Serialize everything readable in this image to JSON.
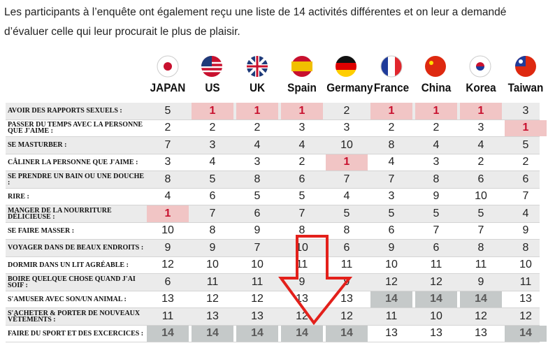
{
  "intro": "Les participants à l’enquête ont également reçu une liste de 14 activités différentes et on leur a demandé d’évaluer celle qui leur procurait le plus de plaisir.",
  "table": {
    "columns": [
      "JAPAN",
      "US",
      "UK",
      "Spain",
      "Germany",
      "France",
      "China",
      "Korea",
      "Taiwan"
    ],
    "rows": [
      {
        "label": "AVOIR DES RAPPORTS SEXUELS :",
        "values": [
          5,
          1,
          1,
          1,
          2,
          1,
          1,
          1,
          3
        ]
      },
      {
        "label": "PASSER DU TEMPS AVEC LA PERSONNE QUE J'AIME :",
        "values": [
          2,
          2,
          2,
          3,
          3,
          2,
          2,
          3,
          1
        ]
      },
      {
        "label": "SE MASTURBER :",
        "values": [
          7,
          3,
          4,
          4,
          10,
          8,
          4,
          4,
          5
        ]
      },
      {
        "label": "CÂLINER LA PERSONNE QUE J'AIME :",
        "values": [
          3,
          4,
          3,
          2,
          1,
          4,
          3,
          2,
          2
        ]
      },
      {
        "label": "SE PRENDRE UN BAIN OU UNE DOUCHE :",
        "values": [
          8,
          5,
          8,
          6,
          7,
          7,
          8,
          6,
          6
        ]
      },
      {
        "label": "RIRE :",
        "values": [
          4,
          6,
          5,
          5,
          4,
          3,
          9,
          10,
          7
        ]
      },
      {
        "label": "MANGER DE LA NOURRITURE DÉLICIEUSE :",
        "values": [
          1,
          7,
          6,
          7,
          5,
          5,
          5,
          5,
          4
        ]
      },
      {
        "label": "SE FAIRE MASSER :",
        "values": [
          10,
          8,
          9,
          8,
          8,
          6,
          7,
          7,
          9
        ]
      },
      {
        "label": "VOYAGER DANS DE BEAUX ENDROITS :",
        "values": [
          9,
          9,
          7,
          10,
          6,
          9,
          6,
          8,
          8
        ]
      },
      {
        "label": "DORMIR DANS UN LIT AGRÉABLE :",
        "values": [
          12,
          10,
          10,
          11,
          11,
          10,
          11,
          11,
          10
        ]
      },
      {
        "label": "BOIRE QUELQUE CHOSE QUAND J'AI SOIF :",
        "values": [
          6,
          11,
          11,
          9,
          9,
          12,
          12,
          9,
          11
        ]
      },
      {
        "label": "S'AMUSER AVEC SON/UN ANIMAL :",
        "values": [
          13,
          12,
          12,
          13,
          13,
          14,
          14,
          14,
          13
        ]
      },
      {
        "label": "S'ACHETER & PORTER DE NOUVEAUX VÊTEMENTS :",
        "values": [
          11,
          13,
          13,
          12,
          12,
          11,
          10,
          12,
          12
        ]
      },
      {
        "label": "FAIRE DU SPORT ET DES EXCERCICES :",
        "values": [
          14,
          14,
          14,
          14,
          14,
          13,
          13,
          13,
          14
        ]
      }
    ]
  }
}
